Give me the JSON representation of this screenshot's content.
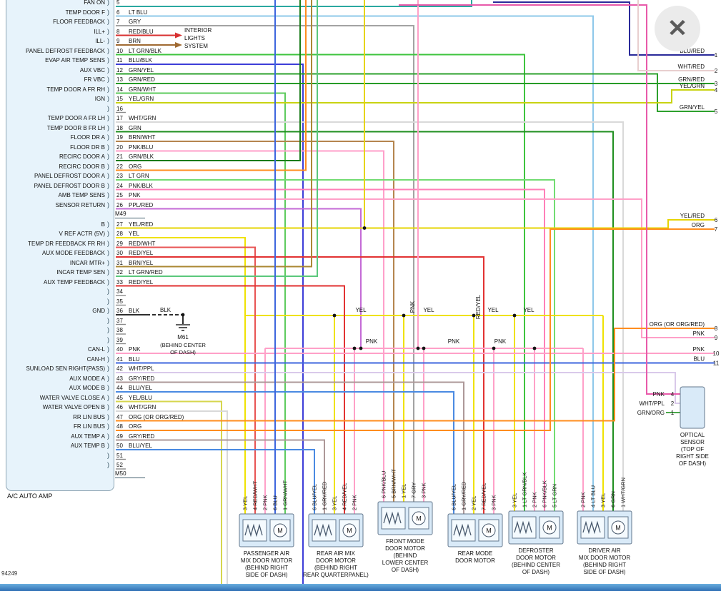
{
  "window": {
    "close_icon": "✕",
    "doc_number": "94249"
  },
  "amp": {
    "name": "A/C AUTO AMP",
    "connector_upper": "M49",
    "connector_lower": "M50",
    "bracket": ")",
    "rows": [
      {
        "pin": "5",
        "label": "FAN ON",
        "wire": ""
      },
      {
        "pin": "6",
        "label": "TEMP DOOR F",
        "wire": "LT BLU"
      },
      {
        "pin": "7",
        "label": "FLOOR FEEDBACK",
        "wire": "GRY"
      },
      {
        "pin": "8",
        "label": "ILL+",
        "wire": "RED/BLU"
      },
      {
        "pin": "9",
        "label": "ILL-",
        "wire": "BRN"
      },
      {
        "pin": "10",
        "label": "PANEL DEFROST FEEDBACK",
        "wire": "LT GRN/BLK"
      },
      {
        "pin": "11",
        "label": "EVAP AIR TEMP SENS",
        "wire": "BLU/BLK"
      },
      {
        "pin": "12",
        "label": "AUX VBC",
        "wire": "GRN/YEL"
      },
      {
        "pin": "13",
        "label": "FR VBC",
        "wire": "GRN/RED"
      },
      {
        "pin": "14",
        "label": "TEMP DOOR A FR RH",
        "wire": "GRN/WHT"
      },
      {
        "pin": "15",
        "label": "IGN",
        "wire": "YEL/GRN"
      },
      {
        "pin": "16",
        "label": "",
        "wire": ""
      },
      {
        "pin": "17",
        "label": "TEMP DOOR A FR LH",
        "wire": "WHT/GRN"
      },
      {
        "pin": "18",
        "label": "TEMP DOOR B FR LH",
        "wire": "GRN"
      },
      {
        "pin": "19",
        "label": "FLOOR DR A",
        "wire": "BRN/WHT"
      },
      {
        "pin": "20",
        "label": "FLOOR DR B",
        "wire": "PNK/BLU"
      },
      {
        "pin": "21",
        "label": "RECIRC DOOR A",
        "wire": "GRN/BLK"
      },
      {
        "pin": "22",
        "label": "RECIRC DOOR B",
        "wire": "ORG"
      },
      {
        "pin": "23",
        "label": "PANEL DEFROST DOOR A",
        "wire": "LT GRN"
      },
      {
        "pin": "24",
        "label": "PANEL DEFROST DOOR B",
        "wire": "PNK/BLK"
      },
      {
        "pin": "25",
        "label": "AMB TEMP SENS",
        "wire": "PNK"
      },
      {
        "pin": "26",
        "label": "SENSOR RETURN",
        "wire": "PPL/RED"
      },
      {
        "pin": "27",
        "label": "B",
        "wire": "YEL/RED"
      },
      {
        "pin": "28",
        "label": "V REF ACTR (5V)",
        "wire": "YEL"
      },
      {
        "pin": "29",
        "label": "TEMP DR FEEDBACK FR RH",
        "wire": "RED/WHT"
      },
      {
        "pin": "30",
        "label": "AUX MODE FEEDBACK",
        "wire": "RED/YEL"
      },
      {
        "pin": "31",
        "label": "INCAR MTR+",
        "wire": "BRN/YEL"
      },
      {
        "pin": "32",
        "label": "INCAR TEMP SEN",
        "wire": "LT GRN/RED"
      },
      {
        "pin": "33",
        "label": "AUX TEMP FEEDBACK",
        "wire": "RED/YEL"
      },
      {
        "pin": "34",
        "label": "",
        "wire": ""
      },
      {
        "pin": "35",
        "label": "",
        "wire": ""
      },
      {
        "pin": "36",
        "label": "GND",
        "wire": "BLK"
      },
      {
        "pin": "37",
        "label": "",
        "wire": ""
      },
      {
        "pin": "38",
        "label": "",
        "wire": ""
      },
      {
        "pin": "39",
        "label": "",
        "wire": ""
      },
      {
        "pin": "40",
        "label": "CAN-L",
        "wire": "PNK"
      },
      {
        "pin": "41",
        "label": "CAN-H",
        "wire": "BLU"
      },
      {
        "pin": "42",
        "label": "SUNLOAD SEN RIGHT(PASS)",
        "wire": "WHT/PPL"
      },
      {
        "pin": "43",
        "label": "AUX MODE A",
        "wire": "GRY/RED"
      },
      {
        "pin": "44",
        "label": "AUX MODE B",
        "wire": "BLU/YEL"
      },
      {
        "pin": "45",
        "label": "WATER VALVE CLOSE A",
        "wire": "YEL/BLU"
      },
      {
        "pin": "46",
        "label": "WATER VALVE OPEN B",
        "wire": "WHT/GRN"
      },
      {
        "pin": "47",
        "label": "RR LIN BUS",
        "wire": "ORG (OR ORG/RED)"
      },
      {
        "pin": "48",
        "label": "FR LIN BUS",
        "wire": "ORG"
      },
      {
        "pin": "49",
        "label": "AUX TEMP A",
        "wire": "GRY/RED"
      },
      {
        "pin": "50",
        "label": "AUX TEMP B",
        "wire": "BLU/YEL"
      },
      {
        "pin": "51",
        "label": "",
        "wire": ""
      },
      {
        "pin": "52",
        "label": "",
        "wire": ""
      }
    ]
  },
  "interior_lights": {
    "lines": [
      "INTERIOR",
      "LIGHTS",
      "SYSTEM"
    ]
  },
  "ground": {
    "wire_label": "BLK",
    "id": "M61",
    "location_lines": [
      "(BEHIND CENTER",
      "OF DASH)"
    ]
  },
  "bus_labels": {
    "yel": [
      "YEL",
      "YEL",
      "YEL",
      "YEL"
    ],
    "pnk": [
      "PNK",
      "PNK",
      "PNK"
    ]
  },
  "vertical_labels": [
    "PNK",
    "RED/YEL"
  ],
  "right_exits": [
    {
      "wire": "BLU/RED",
      "num": "1"
    },
    {
      "wire": "WHT/RED",
      "num": "2"
    },
    {
      "wire": "GRN/RED",
      "num": "3"
    },
    {
      "wire": "YEL/GRN",
      "num": "4"
    },
    {
      "wire": "GRN/YEL",
      "num": "5"
    },
    {
      "wire": "YEL/RED",
      "num": "6"
    },
    {
      "wire": "ORG",
      "num": "7"
    },
    {
      "wire": "ORG (OR ORG/RED)",
      "num": "8"
    },
    {
      "wire": "PNK",
      "num": "9"
    },
    {
      "wire": "PNK",
      "num": "10"
    },
    {
      "wire": "BLU",
      "num": "11"
    }
  ],
  "optical_sensor": {
    "pins": [
      {
        "wire": "PNK",
        "num": "4"
      },
      {
        "wire": "WHT/PPL",
        "num": "2"
      },
      {
        "wire": "GRN/ORG",
        "num": "1"
      }
    ],
    "label_lines": [
      "OPTICAL",
      "SENSOR",
      "(TOP OF",
      "RIGHT SIDE",
      "OF DASH)"
    ]
  },
  "motor_symbol": "M",
  "motors": [
    {
      "pins": [
        {
          "num": "3",
          "wire": "YEL"
        },
        {
          "num": "4",
          "wire": "RED/WHT"
        },
        {
          "num": "2",
          "wire": "PNK"
        },
        {
          "num": "6",
          "wire": "BLU"
        },
        {
          "num": "1",
          "wire": "GRN/WHT"
        }
      ],
      "caption": [
        "PASSENGER AIR",
        "MIX DOOR MOTOR",
        "(BEHIND RIGHT",
        "SIDE OF DASH)"
      ]
    },
    {
      "pins": [
        {
          "num": "6",
          "wire": "BLU/YEL"
        },
        {
          "num": "1",
          "wire": "GRY/RED"
        },
        {
          "num": "3",
          "wire": "YEL"
        },
        {
          "num": "4",
          "wire": "RED/YEL"
        },
        {
          "num": "2",
          "wire": "PNK"
        }
      ],
      "caption": [
        "REAR AIR MIX",
        "DOOR MOTOR",
        "(BEHIND RIGHT",
        "REAR QUARTERPANEL)"
      ]
    },
    {
      "pins": [
        {
          "num": "6",
          "wire": "PNK/BLU"
        },
        {
          "num": "5",
          "wire": "BRN/WHT"
        },
        {
          "num": "1",
          "wire": "YEL"
        },
        {
          "num": "7",
          "wire": "GRY"
        },
        {
          "num": "3",
          "wire": "PNK"
        }
      ],
      "caption": [
        "FRONT MODE",
        "DOOR MOTOR",
        "(BEHIND",
        "LOWER CENTER",
        "OF DASH)"
      ]
    },
    {
      "pins": [
        {
          "num": "6",
          "wire": "BLU/YEL"
        },
        {
          "num": "1",
          "wire": "GRY/RED"
        },
        {
          "num": "2",
          "wire": "YEL"
        },
        {
          "num": "7",
          "wire": "RED/YEL"
        },
        {
          "num": "3",
          "wire": "PNK"
        }
      ],
      "caption": [
        "REAR MODE",
        "DOOR MOTOR"
      ]
    },
    {
      "pins": [
        {
          "num": "3",
          "wire": "YEL"
        },
        {
          "num": "1",
          "wire": "LT GRN/BLK"
        },
        {
          "num": "2",
          "wire": "PNK"
        },
        {
          "num": "6",
          "wire": "PNK/BLK"
        },
        {
          "num": "5",
          "wire": "LT GRN"
        }
      ],
      "caption": [
        "DEFROSTER",
        "DOOR MOTOR",
        "(BEHIND CENTER",
        "OF DASH)"
      ]
    },
    {
      "pins": [
        {
          "num": "2",
          "wire": "PNK"
        },
        {
          "num": "4",
          "wire": "LT BLU"
        },
        {
          "num": "3",
          "wire": "YEL"
        },
        {
          "num": "6",
          "wire": "GRN"
        },
        {
          "num": "1",
          "wire": "WHT/GRN"
        }
      ],
      "caption": [
        "DRIVER AIR",
        "MIX DOOR MOTOR",
        "(BEHIND RIGHT",
        "SIDE OF DASH)"
      ]
    }
  ],
  "wire_colors": {
    "LT BLU": "#8ec8ea",
    "GRY": "#a3a3a3",
    "RED/BLU": "#d83030",
    "BRN": "#a06a32",
    "LT GRN/BLK": "#3ec43e",
    "BLU/BLK": "#3d3dd8",
    "GRN/YEL": "#2da12d",
    "GRN/RED": "#279b27",
    "GRN/WHT": "#5ecb5e",
    "YEL/GRN": "#c9d312",
    "WHT/GRN": "#d9d9d9",
    "GRN": "#1f8f1f",
    "BRN/WHT": "#b5854e",
    "PNK/BLU": "#ff9fca",
    "GRN/BLK": "#1a7c1a",
    "ORG": "#ff8d1f",
    "LT GRN": "#72dc72",
    "PNK/BLK": "#ff7fb8",
    "PNK": "#ffa0c8",
    "PPL/RED": "#c46ad6",
    "YEL/RED": "#e6d402",
    "YEL": "#efe202",
    "RED/WHT": "#e85454",
    "RED/YEL": "#e23232",
    "BRN/YEL": "#ab8834",
    "LT GRN/RED": "#5bc87c",
    "BLK": "#2e2e2e",
    "BLU": "#3e66de",
    "WHT/PPL": "#d9c9ea",
    "GRY/RED": "#ad9898",
    "BLU/YEL": "#4a8ae2",
    "YEL/BLU": "#d6d64e",
    "WHT/RED": "#e8cfcf",
    "BLU/RED": "#2a2a9a",
    "GRN/ORG": "#4aa84a",
    "TEAL": "#2aa8a0",
    "MAGENTA": "#e85aaa",
    "STUB": "#8a8a8a"
  }
}
